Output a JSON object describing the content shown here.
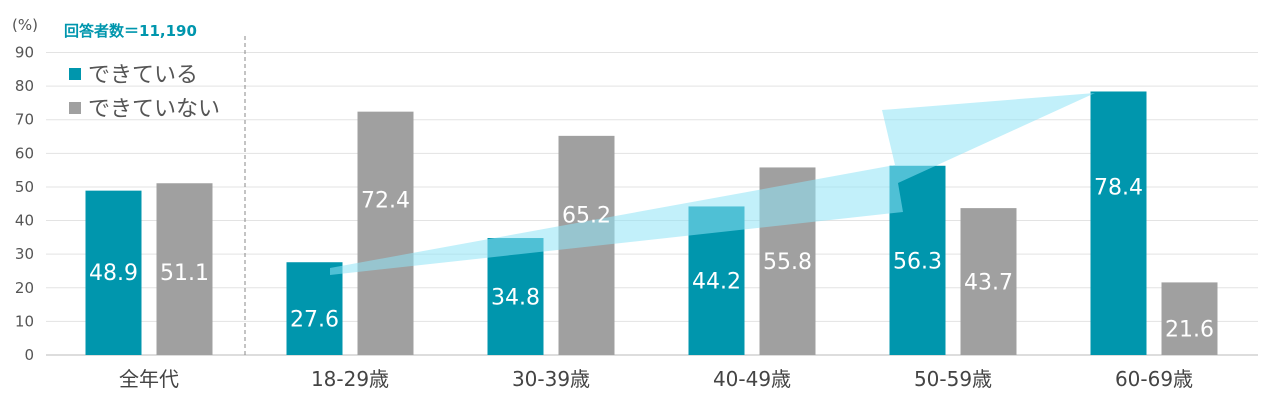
{
  "chart_data": {
    "type": "bar",
    "y_unit_label": "(%)",
    "respondents_note": "回答者数＝11,190",
    "categories": [
      "全年代",
      "18-29歳",
      "30-39歳",
      "40-49歳",
      "50-59歳",
      "60-69歳"
    ],
    "series": [
      {
        "name": "できている",
        "color": "#0096AD",
        "values": [
          48.9,
          27.6,
          34.8,
          44.2,
          56.3,
          78.4
        ]
      },
      {
        "name": "できていない",
        "color": "#A0A0A0",
        "values": [
          51.1,
          72.4,
          65.2,
          55.8,
          43.7,
          21.6
        ]
      }
    ],
    "ylim": [
      0,
      90
    ],
    "yticks": [
      0,
      10,
      20,
      30,
      40,
      50,
      60,
      70,
      80,
      90
    ],
    "grid": true,
    "legend_position": "top-left",
    "trend_arrow_color": "#8FE3F5"
  }
}
